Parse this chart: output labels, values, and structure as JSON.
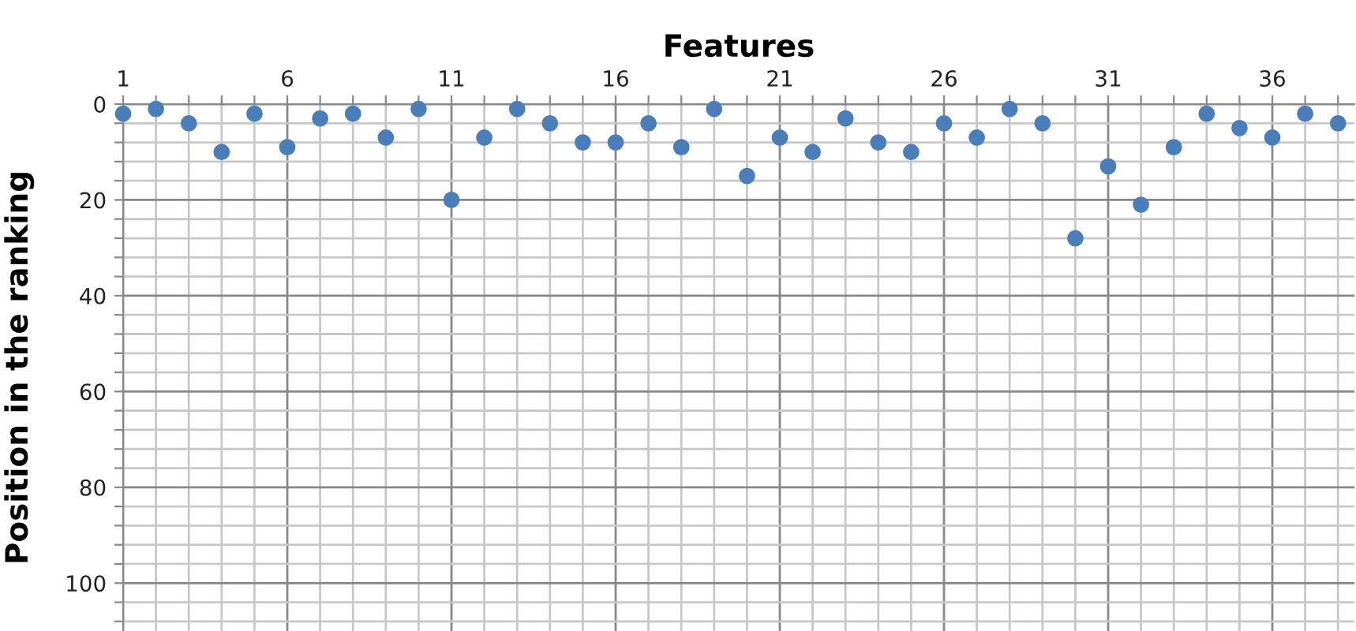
{
  "chart_data": {
    "type": "scatter",
    "xlabel": "Features",
    "ylabel": "Position in the ranking",
    "x": [
      1,
      2,
      3,
      4,
      5,
      6,
      7,
      8,
      9,
      10,
      11,
      12,
      13,
      14,
      15,
      16,
      17,
      18,
      19,
      20,
      21,
      22,
      23,
      24,
      25,
      26,
      27,
      28,
      29,
      30,
      31,
      32,
      33,
      34,
      35,
      36,
      37,
      38
    ],
    "series": [
      {
        "color": "#4a7ebb",
        "values": [
          2,
          1,
          4,
          10,
          2,
          9,
          3,
          2,
          7,
          1,
          20,
          7,
          1,
          4,
          8,
          8,
          4,
          9,
          1,
          15,
          7,
          10,
          3,
          8,
          10,
          4,
          7,
          1,
          4,
          28,
          13,
          21,
          9,
          2,
          5,
          7,
          2,
          4
        ]
      }
    ],
    "marker": "circle",
    "grid": true,
    "xlim": [
      1,
      38.5
    ],
    "ylim": [
      110,
      0
    ],
    "xticks": [
      1,
      {
        "value": 2,
        "label": null
      },
      {
        "value": 3,
        "label": null
      },
      {
        "value": 4,
        "label": null
      },
      {
        "value": 5,
        "label": null
      },
      6,
      {
        "value": 7,
        "label": null
      },
      {
        "value": 8,
        "label": null
      },
      {
        "value": 9,
        "label": null
      },
      {
        "value": 10,
        "label": null
      },
      11,
      {
        "value": 12,
        "label": null
      },
      {
        "value": 13,
        "label": null
      },
      {
        "value": 14,
        "label": null
      },
      {
        "value": 15,
        "label": null
      },
      16,
      {
        "value": 17,
        "label": null
      },
      {
        "value": 18,
        "label": null
      },
      {
        "value": 19,
        "label": null
      },
      {
        "value": 20,
        "label": null
      },
      21,
      {
        "value": 22,
        "label": null
      },
      {
        "value": 23,
        "label": null
      },
      {
        "value": 24,
        "label": null
      },
      {
        "value": 25,
        "label": null
      },
      26,
      {
        "value": 27,
        "label": null
      },
      {
        "value": 28,
        "label": null
      },
      {
        "value": 29,
        "label": null
      },
      {
        "value": 30,
        "label": null
      },
      31,
      {
        "value": 32,
        "label": null
      },
      {
        "value": 33,
        "label": null
      },
      {
        "value": 34,
        "label": null
      },
      {
        "value": 35,
        "label": null
      },
      36,
      {
        "value": 37,
        "label": null
      },
      {
        "value": 38,
        "label": null
      }
    ],
    "yticks": [
      0,
      {
        "value": 4,
        "label": null
      },
      {
        "value": 8,
        "label": null
      },
      {
        "value": 12,
        "label": null
      },
      {
        "value": 16,
        "label": null
      },
      20,
      {
        "value": 24,
        "label": null
      },
      {
        "value": 28,
        "label": null
      },
      {
        "value": 32,
        "label": null
      },
      {
        "value": 36,
        "label": null
      },
      40,
      {
        "value": 44,
        "label": null
      },
      {
        "value": 48,
        "label": null
      },
      {
        "value": 52,
        "label": null
      },
      {
        "value": 56,
        "label": null
      },
      60,
      {
        "value": 64,
        "label": null
      },
      {
        "value": 68,
        "label": null
      },
      {
        "value": 72,
        "label": null
      },
      {
        "value": 76,
        "label": null
      },
      80,
      {
        "value": 84,
        "label": null
      },
      {
        "value": 88,
        "label": null
      },
      {
        "value": 92,
        "label": null
      },
      {
        "value": 96,
        "label": null
      },
      100,
      {
        "value": 104,
        "label": null
      },
      {
        "value": 108,
        "label": null
      }
    ]
  }
}
